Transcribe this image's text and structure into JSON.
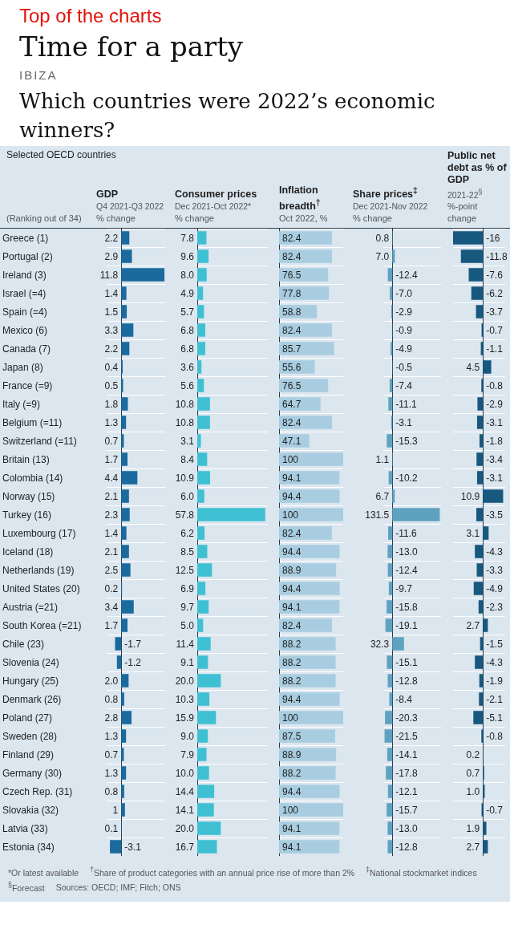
{
  "chart_data": [
    {
      "type": "other",
      "title": "Time for a party",
      "subtitle": "Which countries were 2022’s economic winners?",
      "annotations": [
        "Top of the charts",
        "IBIZA",
        "Selected OECD countries"
      ]
    },
    {
      "type": "bar",
      "orientation": "horizontal",
      "title": "GDP",
      "subtitle": "Q4 2021-Q3 2022",
      "xlabel": "% change",
      "ylabel": "(Ranking out of 34)",
      "tick_labels": "y",
      "grid": "y",
      "color": "#1b6a9e",
      "xlim": [
        -4,
        12
      ],
      "categories": [
        "Greece (1)",
        "Portugal (2)",
        "Ireland (3)",
        "Israel (=4)",
        "Spain (=4)",
        "Mexico (6)",
        "Canada (7)",
        "Japan (8)",
        "France (=9)",
        "Italy (=9)",
        "Belgium (=11)",
        "Switzerland (=11)",
        "Britain (13)",
        "Colombia (14)",
        "Norway (15)",
        "Turkey (16)",
        "Luxembourg (17)",
        "Iceland (18)",
        "Netherlands (19)",
        "United States (20)",
        "Austria (=21)",
        "South Korea (=21)",
        "Chile (23)",
        "Slovenia (24)",
        "Hungary (25)",
        "Denmark (26)",
        "Poland (27)",
        "Sweden (28)",
        "Finland (29)",
        "Germany (30)",
        "Czech Rep. (31)",
        "Slovakia (32)",
        "Latvia (33)",
        "Estonia (34)"
      ],
      "values": [
        2.2,
        2.9,
        11.8,
        1.4,
        1.5,
        3.3,
        2.2,
        0.4,
        0.5,
        1.8,
        1.3,
        0.7,
        1.7,
        4.4,
        2.1,
        2.3,
        1.4,
        2.1,
        2.5,
        0.2,
        3.4,
        1.7,
        -1.7,
        -1.2,
        2.0,
        0.8,
        2.8,
        1.3,
        0.7,
        1.3,
        0.8,
        1,
        0.1,
        -3.1
      ],
      "value_labels": [
        "2.2",
        "2.9",
        "11.8",
        "1.4",
        "1.5",
        "3.3",
        "2.2",
        "0.4",
        "0.5",
        "1.8",
        "1.3",
        "0.7",
        "1.7",
        "4.4",
        "2.1",
        "2.3",
        "1.4",
        "2.1",
        "2.5",
        "0.2",
        "3.4",
        "1.7",
        "-1.7",
        "-1.2",
        "2.0",
        "0.8",
        "2.8",
        "1.3",
        "0.7",
        "1.3",
        "0.8",
        "1",
        "0.1",
        "-3.1"
      ]
    },
    {
      "type": "bar",
      "orientation": "horizontal",
      "title": "Consumer prices",
      "subtitle": "Dec 2021-Oct 2022*",
      "xlabel": "% change",
      "tick_labels": false,
      "grid": "y",
      "color": "#3ec0d2",
      "xlim": [
        0,
        60
      ],
      "categories": [
        null,
        null,
        null,
        null,
        null,
        null,
        null,
        null,
        null,
        null,
        null,
        null,
        null,
        null,
        null,
        null,
        null,
        null,
        null,
        null,
        null,
        null,
        null,
        null,
        null,
        null,
        null,
        null,
        null,
        null,
        null,
        null,
        null,
        null
      ],
      "values": [
        7.8,
        9.6,
        8.0,
        4.9,
        5.7,
        6.8,
        6.8,
        3.6,
        5.6,
        10.8,
        10.8,
        3.1,
        8.4,
        10.9,
        6.0,
        57.8,
        6.2,
        8.5,
        12.5,
        6.9,
        9.7,
        5.0,
        11.4,
        9.1,
        20.0,
        10.3,
        15.9,
        9.0,
        7.9,
        10.0,
        14.4,
        14.1,
        20.0,
        16.7
      ],
      "value_labels": [
        "7.8",
        "9.6",
        "8.0",
        "4.9",
        "5.7",
        "6.8",
        "6.8",
        "3.6",
        "5.6",
        "10.8",
        "10.8",
        "3.1",
        "8.4",
        "10.9",
        "6.0",
        "57.8",
        "6.2",
        "8.5",
        "12.5",
        "6.9",
        "9.7",
        "5.0",
        "11.4",
        "9.1",
        "20.0",
        "10.3",
        "15.9",
        "9.0",
        "7.9",
        "10.0",
        "14.4",
        "14.1",
        "20.0",
        "16.7"
      ]
    },
    {
      "type": "bar",
      "orientation": "horizontal",
      "title": "Inflation breadth$^{†}$",
      "xlabel": "Oct 2022, %",
      "tick_labels": false,
      "grid": "y",
      "color": "#a9cde0",
      "xlim": [
        0,
        100
      ],
      "categories": [
        null,
        null,
        null,
        null,
        null,
        null,
        null,
        null,
        null,
        null,
        null,
        null,
        null,
        null,
        null,
        null,
        null,
        null,
        null,
        null,
        null,
        null,
        null,
        null,
        null,
        null,
        null,
        null,
        null,
        null,
        null,
        null,
        null,
        null
      ],
      "values": [
        82.4,
        82.4,
        76.5,
        77.8,
        58.8,
        82.4,
        85.7,
        55.6,
        76.5,
        64.7,
        82.4,
        47.1,
        100,
        94.1,
        94.4,
        100,
        82.4,
        94.4,
        88.9,
        94.4,
        94.1,
        82.4,
        88.2,
        88.2,
        88.2,
        94.4,
        100,
        87.5,
        88.9,
        88.2,
        94.4,
        100,
        94.1,
        94.1
      ],
      "value_labels": [
        "82.4",
        "82.4",
        "76.5",
        "77.8",
        "58.8",
        "82.4",
        "85.7",
        "55.6",
        "76.5",
        "64.7",
        "82.4",
        "47.1",
        "100",
        "94.1",
        "94.4",
        "100",
        "82.4",
        "94.4",
        "88.9",
        "94.4",
        "94.1",
        "82.4",
        "88.2",
        "88.2",
        "88.2",
        "94.4",
        "100",
        "87.5",
        "88.9",
        "88.2",
        "94.4",
        "100",
        "94.1",
        "94.1"
      ]
    },
    {
      "type": "bar",
      "orientation": "horizontal",
      "title": "Share prices$^{‡}$",
      "subtitle": "Dec 2021-Nov 2022",
      "xlabel": "% change",
      "tick_labels": false,
      "grid": "y",
      "color": "#5fa2c0",
      "xlim": [
        -25,
        135
      ],
      "categories": [
        null,
        null,
        null,
        null,
        null,
        null,
        null,
        null,
        null,
        null,
        null,
        null,
        null,
        null,
        null,
        null,
        null,
        null,
        null,
        null,
        null,
        null,
        null,
        null,
        null,
        null,
        null,
        null,
        null,
        null,
        null,
        null,
        null,
        null
      ],
      "values": [
        0.8,
        7.0,
        -12.4,
        -7.0,
        -2.9,
        -0.9,
        -4.9,
        -0.5,
        -7.4,
        -11.1,
        -3.1,
        -15.3,
        1.1,
        -10.2,
        6.7,
        131.5,
        -11.6,
        -13.0,
        -12.4,
        -9.7,
        -15.8,
        -19.1,
        32.3,
        -15.1,
        -12.8,
        -8.4,
        -20.3,
        -21.5,
        -14.1,
        -17.8,
        -12.1,
        -15.7,
        -13.0,
        -12.8
      ],
      "value_labels": [
        "0.8",
        "7.0",
        "-12.4",
        "-7.0",
        "-2.9",
        "-0.9",
        "-4.9",
        "-0.5",
        "-7.4",
        "-11.1",
        "-3.1",
        "-15.3",
        "1.1",
        "-10.2",
        "6.7",
        "131.5",
        "-11.6",
        "-13.0",
        "-12.4",
        "-9.7",
        "-15.8",
        "-19.1",
        "32.3",
        "-15.1",
        "-12.8",
        "-8.4",
        "-20.3",
        "-21.5",
        "-14.1",
        "-17.8",
        "-12.1",
        "-15.7",
        "-13.0",
        "-12.8"
      ]
    },
    {
      "type": "bar",
      "orientation": "horizontal",
      "title": "Public net debt as % of GDP",
      "subtitle": "2021-22$^{§}$",
      "xlabel": "%-point change",
      "tick_labels": false,
      "grid": "y",
      "color": "#17587f",
      "xlim": [
        -16,
        12
      ],
      "categories": [
        null,
        null,
        null,
        null,
        null,
        null,
        null,
        null,
        null,
        null,
        null,
        null,
        null,
        null,
        null,
        null,
        null,
        null,
        null,
        null,
        null,
        null,
        null,
        null,
        null,
        null,
        null,
        null,
        null,
        null,
        null,
        null,
        null,
        null
      ],
      "values": [
        -16,
        -11.8,
        -7.6,
        -6.2,
        -3.7,
        -0.7,
        -1.1,
        4.5,
        -0.8,
        -2.9,
        -3.1,
        -1.8,
        -3.4,
        -3.1,
        10.9,
        -3.5,
        3.1,
        -4.3,
        -3.3,
        -4.9,
        -2.3,
        2.7,
        -1.5,
        -4.3,
        -1.9,
        -2.1,
        -5.1,
        -0.8,
        0.2,
        0.7,
        1.0,
        -0.7,
        1.9,
        2.7
      ],
      "value_labels": [
        "-16",
        "-11.8",
        "-7.6",
        "-6.2",
        "-3.7",
        "-0.7",
        "-1.1",
        "4.5",
        "-0.8",
        "-2.9",
        "-3.1",
        "-1.8",
        "-3.4",
        "-3.1",
        "10.9",
        "-3.5",
        "3.1",
        "-4.3",
        "-3.3",
        "-4.9",
        "-2.3",
        "2.7",
        "-1.5",
        "-4.3",
        "-1.9",
        "-2.1",
        "-5.1",
        "-0.8",
        "0.2",
        "0.7",
        "1.0",
        "-0.7",
        "1.9",
        "2.7"
      ]
    },
    {
      "type": "other",
      "annotations": [
        "*Or latest available",
        "$^{†}$Share of product categories with an annual price rise of more than 2%",
        "$^{‡}$National stockmarket indices",
        "$^{§}$Forecast",
        "Sources: OECD; IMF; Fitch; ONS"
      ]
    }
  ]
}
